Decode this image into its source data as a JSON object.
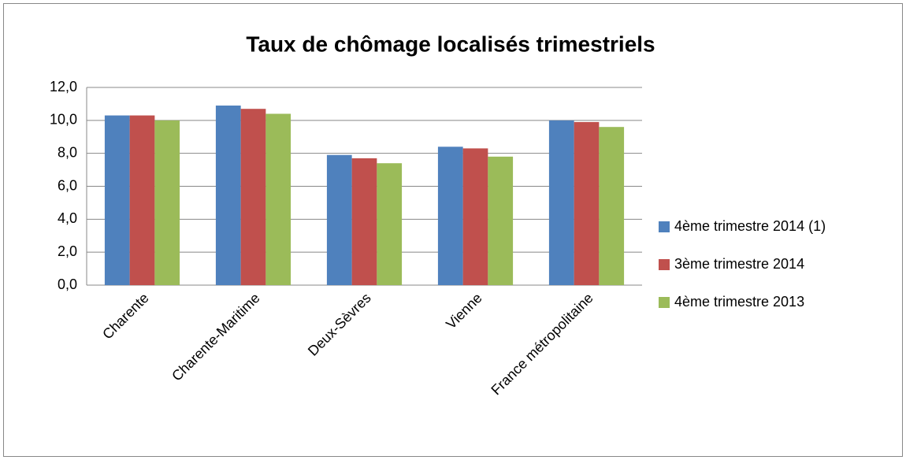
{
  "chart_data": {
    "type": "bar",
    "title": "Taux de chômage localisés trimestriels",
    "categories": [
      "Charente",
      "Charente-Maritime",
      "Deux-Sèvres",
      "Vienne",
      "France métropolitaine"
    ],
    "series": [
      {
        "name": "4ème trimestre 2014 (1)",
        "color": "#4f81bd",
        "values": [
          10.3,
          10.9,
          7.9,
          8.4,
          10.0
        ]
      },
      {
        "name": "3ème trimestre 2014",
        "color": "#c0504d",
        "values": [
          10.3,
          10.7,
          7.7,
          8.3,
          9.9
        ]
      },
      {
        "name": "4ème trimestre 2013",
        "color": "#9bbb59",
        "values": [
          10.0,
          10.4,
          7.4,
          7.8,
          9.6
        ]
      }
    ],
    "ylim": [
      0,
      12
    ],
    "yticks": [
      {
        "value": 0,
        "label": "0,0"
      },
      {
        "value": 2,
        "label": "2,0"
      },
      {
        "value": 4,
        "label": "4,0"
      },
      {
        "value": 6,
        "label": "6,0"
      },
      {
        "value": 8,
        "label": "8,0"
      },
      {
        "value": 10,
        "label": "10,0"
      },
      {
        "value": 12,
        "label": "12,0"
      }
    ],
    "grid": true,
    "legend": "right"
  }
}
